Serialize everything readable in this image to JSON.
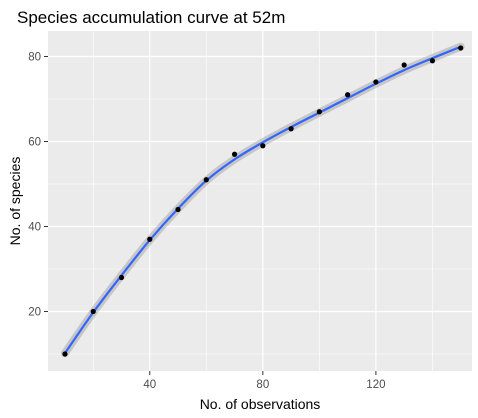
{
  "chart_data": {
    "type": "scatter",
    "title": "Species accumulation curve at 52m",
    "xlabel": "No. of observations",
    "ylabel": "No. of species",
    "xlim": [
      4,
      154
    ],
    "ylim": [
      6,
      86
    ],
    "xticks": [
      40,
      80,
      120
    ],
    "yticks": [
      20,
      40,
      60,
      80
    ],
    "grid": true,
    "legend": "none",
    "series": [
      {
        "type": "points",
        "x": [
          10,
          20,
          30,
          40,
          50,
          60,
          70,
          80,
          90,
          100,
          110,
          120,
          130,
          140,
          150
        ],
        "y": [
          10,
          20,
          28,
          37,
          44,
          51,
          57,
          59,
          63,
          67,
          71,
          74,
          78,
          79,
          82
        ]
      },
      {
        "type": "smooth-line",
        "x": [
          10,
          20,
          30,
          40,
          50,
          60,
          70,
          80,
          90,
          100,
          110,
          120,
          130,
          140,
          150
        ],
        "y": [
          10.2,
          19.8,
          28.5,
          36.8,
          44.2,
          50.8,
          55.8,
          59.8,
          63.4,
          66.8,
          70.2,
          73.6,
          76.8,
          79.6,
          82.3
        ]
      }
    ],
    "colors": {
      "panel": "#ebebeb",
      "grid_major": "#ffffff",
      "points": "#000000",
      "line": "#3366ff",
      "ribbon": "#999999"
    }
  }
}
